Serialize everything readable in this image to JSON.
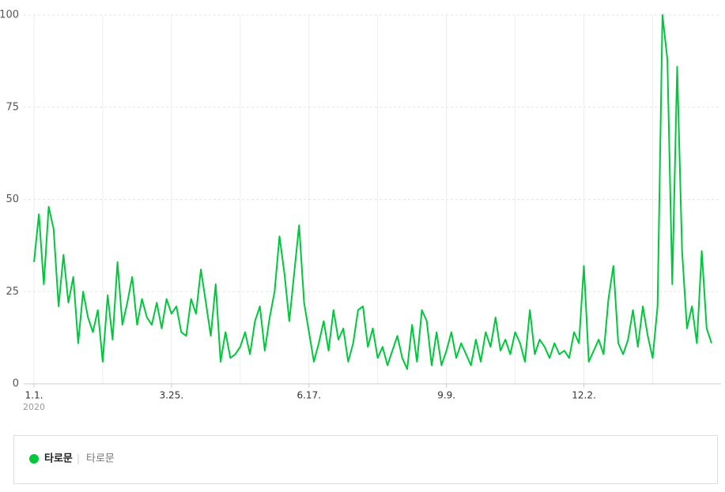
{
  "chart_data": {
    "type": "line",
    "x": [
      0,
      3,
      6,
      9,
      12,
      15,
      18,
      21,
      24,
      27,
      30,
      33,
      36,
      39,
      42,
      45,
      48,
      51,
      54,
      57,
      60,
      63,
      66,
      69,
      72,
      75,
      78,
      81,
      84,
      87,
      90,
      93,
      96,
      99,
      102,
      105,
      108,
      111,
      114,
      117,
      120,
      123,
      126,
      129,
      132,
      135,
      138,
      141,
      144,
      147,
      150,
      153,
      156,
      159,
      162,
      165,
      168,
      171,
      174,
      177,
      180,
      183,
      186,
      189,
      192,
      195,
      198,
      201,
      204,
      207,
      210,
      213,
      216,
      219,
      222,
      225,
      228,
      231,
      234,
      237,
      240,
      243,
      246,
      249,
      252,
      255,
      258,
      261,
      264,
      267,
      270,
      273,
      276,
      279,
      282,
      285,
      288,
      291,
      294,
      297,
      300,
      303,
      306,
      309,
      312,
      315,
      318,
      321,
      324,
      327,
      330,
      333,
      336,
      339,
      342,
      345,
      348,
      351,
      354,
      357,
      360,
      363,
      366,
      369,
      372,
      375,
      378,
      381,
      384,
      387,
      390,
      393,
      396,
      399,
      402,
      405,
      408,
      411,
      414
    ],
    "series": [
      {
        "name": "타로문",
        "color": "#00c73c",
        "values": [
          33,
          46,
          27,
          48,
          42,
          21,
          35,
          22,
          29,
          11,
          25,
          18,
          14,
          20,
          6,
          24,
          12,
          33,
          16,
          22,
          29,
          16,
          23,
          18,
          16,
          22,
          15,
          23,
          19,
          21,
          14,
          13,
          23,
          19,
          31,
          22,
          13,
          27,
          6,
          14,
          7,
          8,
          10,
          14,
          8,
          17,
          21,
          9,
          18,
          25,
          40,
          30,
          17,
          30,
          43,
          22,
          14,
          6,
          11,
          17,
          9,
          20,
          12,
          15,
          6,
          11,
          20,
          21,
          10,
          15,
          7,
          10,
          5,
          9,
          13,
          7,
          4,
          16,
          6,
          20,
          17,
          5,
          14,
          5,
          9,
          14,
          7,
          11,
          8,
          5,
          12,
          6,
          14,
          10,
          18,
          9,
          12,
          8,
          14,
          11,
          6,
          20,
          8,
          12,
          10,
          7,
          11,
          8,
          9,
          7,
          14,
          11,
          32,
          6,
          9,
          12,
          8,
          23,
          32,
          11,
          8,
          12,
          20,
          10,
          21,
          13,
          7,
          21,
          100,
          88,
          27,
          86,
          36,
          15,
          21,
          11,
          36,
          15,
          11
        ]
      }
    ],
    "xlim": [
      0,
      414
    ],
    "xticks": [
      {
        "value": 0,
        "label": "1.1."
      },
      {
        "value": 84,
        "label": "3.25."
      },
      {
        "value": 168,
        "label": "6.17."
      },
      {
        "value": 252,
        "label": "9.9."
      },
      {
        "value": 336,
        "label": "12.2."
      }
    ],
    "x_gridlines": [
      0,
      42,
      84,
      126,
      168,
      210,
      252,
      294,
      336,
      378
    ],
    "xtick_year": "2020",
    "ylim": [
      0,
      100
    ],
    "yticks": [
      0,
      25,
      50,
      75,
      100
    ],
    "grid": true,
    "legend": {
      "label": "타로문",
      "sublabel": "타로문"
    }
  }
}
